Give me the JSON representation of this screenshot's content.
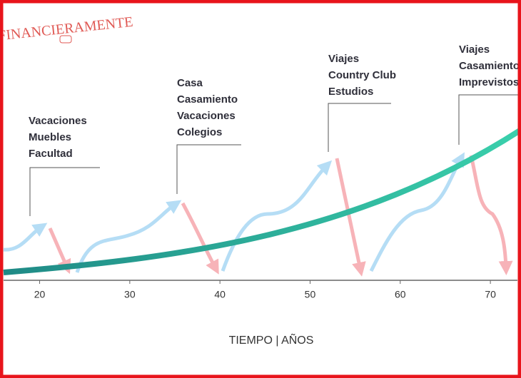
{
  "brand": "FINANCIERAMENTE",
  "chart_data": {
    "type": "timeline",
    "x_label": "TIEMPO | AÑOS",
    "xlim": [
      16,
      73
    ],
    "xticks": [
      20,
      30,
      40,
      50,
      60,
      70
    ],
    "annotations": [
      {
        "lines": [
          "Vacaciones",
          "Muebles",
          "Facultad"
        ]
      },
      {
        "lines": [
          "Casa",
          "Casamiento",
          "Vacaciones",
          "Colegios"
        ]
      },
      {
        "lines": [
          "Viajes",
          "Country Club",
          "Estudios"
        ]
      },
      {
        "lines": [
          "Viajes",
          "Casamiento",
          "Imprevistos"
        ]
      }
    ]
  }
}
